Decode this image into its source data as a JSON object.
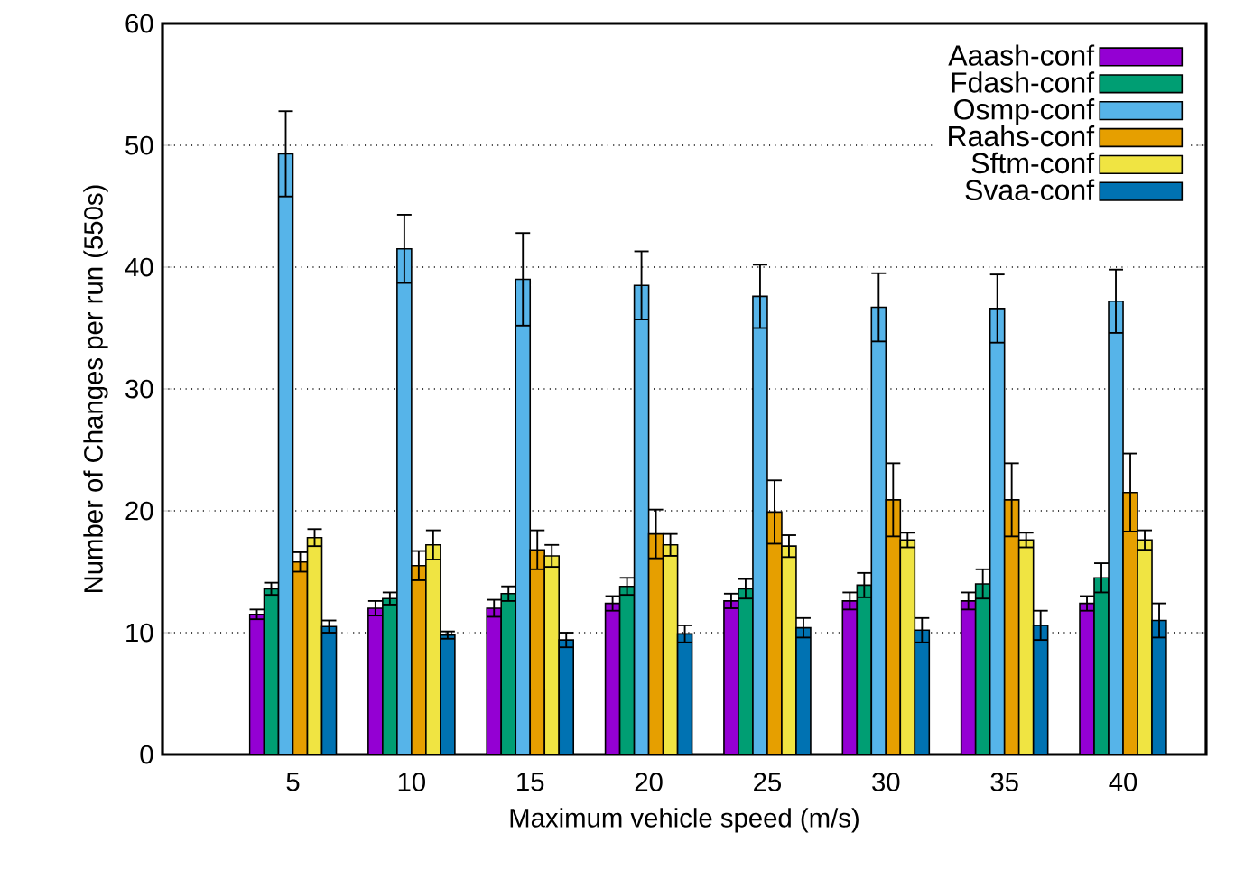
{
  "chart_data": {
    "type": "bar",
    "xlabel": "Maximum vehicle speed (m/s)",
    "ylabel": "Number of Changes per run (550s)",
    "categories": [
      "5",
      "10",
      "15",
      "20",
      "25",
      "30",
      "35",
      "40"
    ],
    "ylim": [
      0,
      60
    ],
    "yticks": [
      0,
      10,
      20,
      30,
      40,
      50,
      60
    ],
    "grid": "y",
    "legend": "top right",
    "series": [
      {
        "name": "Aaash-conf",
        "color": "#9400d3",
        "values": [
          11.5,
          12,
          12,
          12.4,
          12.6,
          12.6,
          12.6,
          12.4
        ],
        "errors": [
          0.4,
          0.6,
          0.7,
          0.6,
          0.6,
          0.7,
          0.7,
          0.6
        ]
      },
      {
        "name": "Fdash-conf",
        "color": "#009e73",
        "values": [
          13.6,
          12.8,
          13.2,
          13.8,
          13.6,
          13.9,
          14,
          14.5
        ],
        "errors": [
          0.5,
          0.5,
          0.6,
          0.7,
          0.8,
          1,
          1.2,
          1.2
        ]
      },
      {
        "name": "Osmp-conf",
        "color": "#56b4e9",
        "values": [
          49.3,
          41.5,
          39,
          38.5,
          37.6,
          36.7,
          36.6,
          37.2
        ],
        "errors": [
          3.5,
          2.8,
          3.8,
          2.8,
          2.6,
          2.8,
          2.8,
          2.6
        ]
      },
      {
        "name": "Raahs-conf",
        "color": "#e69f00",
        "values": [
          15.8,
          15.5,
          16.8,
          18.1,
          19.9,
          20.9,
          20.9,
          21.5
        ],
        "errors": [
          0.8,
          1.2,
          1.6,
          2,
          2.6,
          3,
          3,
          3.2
        ]
      },
      {
        "name": "Sftm-conf",
        "color": "#f0e442",
        "values": [
          17.8,
          17.2,
          16.3,
          17.2,
          17.1,
          17.6,
          17.6,
          17.6
        ],
        "errors": [
          0.7,
          1.2,
          0.9,
          0.9,
          0.9,
          0.6,
          0.6,
          0.8
        ]
      },
      {
        "name": "Svaa-conf",
        "color": "#0072b2",
        "values": [
          10.5,
          9.8,
          9.4,
          9.9,
          10.4,
          10.2,
          10.6,
          11
        ],
        "errors": [
          0.5,
          0.3,
          0.6,
          0.7,
          0.8,
          1,
          1.2,
          1.4
        ]
      }
    ]
  }
}
